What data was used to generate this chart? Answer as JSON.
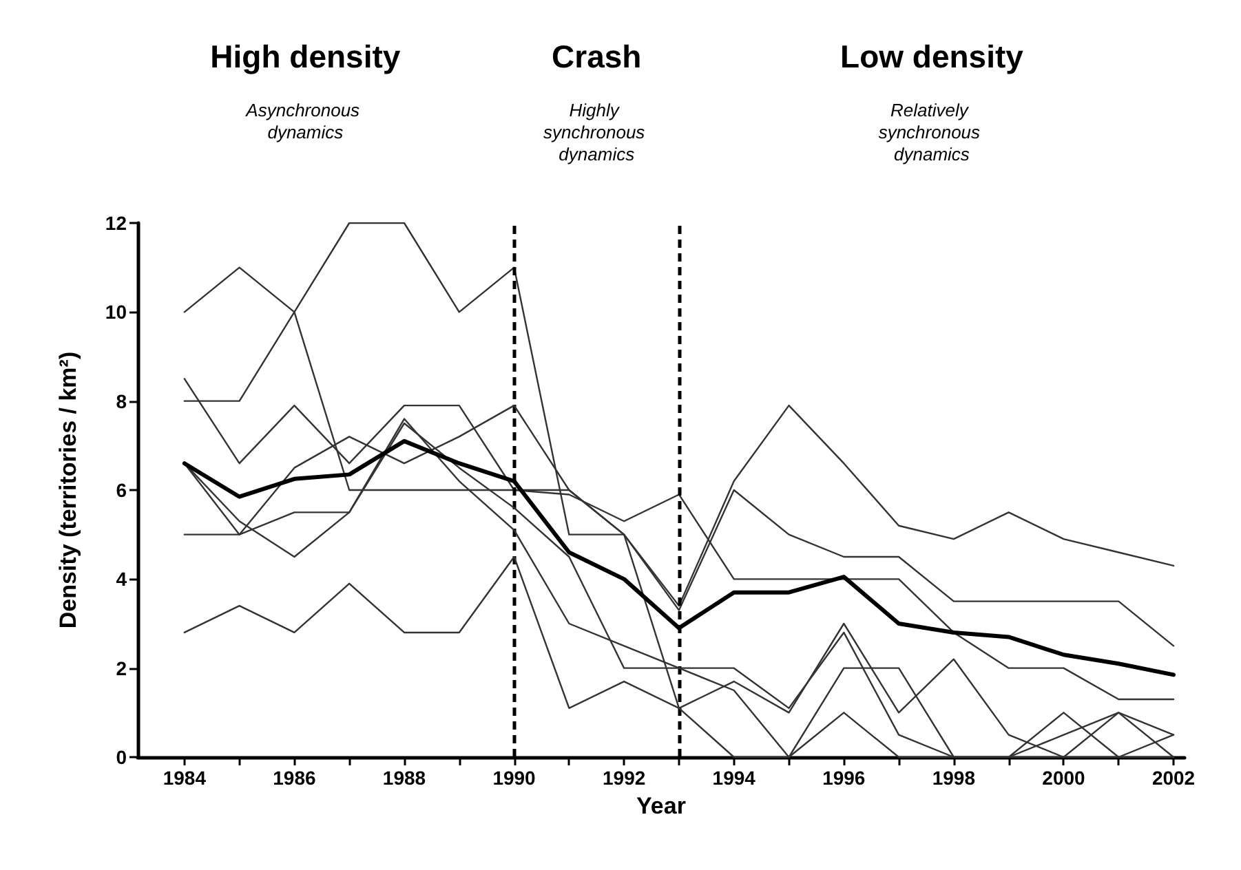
{
  "chart_data": {
    "type": "line",
    "xlabel": "Year",
    "ylabel": "Density (territories / km²)",
    "annotations": [
      "High density",
      "Asynchronous dynamics",
      "Crash",
      "Highly synchronous dynamics",
      "Low density",
      "Relatively synchronous dynamics"
    ],
    "x": [
      1984,
      1985,
      1986,
      1987,
      1988,
      1989,
      1990,
      1991,
      1992,
      1993,
      1994,
      1995,
      1996,
      1997,
      1998,
      1999,
      2000,
      2001,
      2002
    ],
    "series": [
      {
        "color": "#333333",
        "values": [
          10,
          11,
          10,
          6,
          6,
          6,
          6,
          6,
          5,
          3.3,
          6.0,
          5.0,
          4.5,
          4.5,
          3.5,
          3.5,
          3.5,
          3.5,
          2.5
        ]
      },
      {
        "color": "#333333",
        "values": [
          8,
          8,
          10,
          12,
          12,
          10,
          11,
          5,
          5,
          3.4,
          6.2,
          7.9,
          6.6,
          5.2,
          4.9,
          5.5,
          4.9,
          4.6,
          4.3
        ]
      },
      {
        "color": "#333333",
        "values": [
          8.5,
          6.6,
          7.9,
          6.6,
          7.9,
          7.9,
          6.0,
          5.9,
          5.3,
          5.9,
          4.0,
          4.0,
          4.0,
          4.0,
          2.8,
          2.0,
          2.0,
          1.3,
          1.3
        ]
      },
      {
        "color": "#333333",
        "values": [
          6.6,
          5.0,
          6.5,
          7.2,
          6.6,
          7.2,
          7.9,
          6.0,
          5.0,
          1.1,
          1.7,
          1.0,
          3.0,
          1.0,
          2.2,
          0.5,
          0,
          1.0,
          0.5
        ]
      },
      {
        "color": "#333333",
        "values": [
          6.6,
          5.3,
          4.5,
          5.5,
          7.6,
          6.2,
          5.1,
          3.0,
          2.5,
          2.0,
          2.0,
          1.1,
          2.8,
          0.5,
          0,
          0,
          0,
          0,
          0
        ]
      },
      {
        "color": "#333333",
        "values": [
          5,
          5,
          5.5,
          5.5,
          7.5,
          6.5,
          5.6,
          4.5,
          2.0,
          2.0,
          1.5,
          0,
          2.0,
          2.0,
          0,
          0,
          1.0,
          0,
          0.5
        ]
      },
      {
        "color": "#333333",
        "values": [
          2.8,
          3.4,
          2.8,
          3.9,
          2.8,
          2.8,
          4.5,
          1.1,
          1.7,
          1.1,
          0,
          0,
          1.0,
          0,
          0,
          0,
          0.5,
          1.0,
          0
        ]
      },
      {
        "color": "#000000",
        "values": [
          6.6,
          5.85,
          6.25,
          6.35,
          7.1,
          6.6,
          6.2,
          4.6,
          4.0,
          2.9,
          3.7,
          3.7,
          4.05,
          3.0,
          2.8,
          2.7,
          2.3,
          2.1,
          1.85
        ]
      }
    ],
    "ref_lines": [
      {
        "axis": "x",
        "value": 1990,
        "color": "#000000",
        "line_style": "dashed"
      },
      {
        "axis": "x",
        "value": 1993,
        "color": "#000000",
        "line_style": "dashed"
      }
    ],
    "xlim": [
      1983.15,
      2002.2
    ],
    "xticks": [
      {
        "value": 1984,
        "label": "1984"
      },
      {
        "value": 1985,
        "label": null
      },
      {
        "value": 1986,
        "label": "1986"
      },
      {
        "value": 1987,
        "label": null
      },
      {
        "value": 1988,
        "label": "1988"
      },
      {
        "value": 1989,
        "label": null
      },
      {
        "value": 1990,
        "label": "1990"
      },
      {
        "value": 1991,
        "label": null
      },
      {
        "value": 1992,
        "label": "1992"
      },
      {
        "value": 1993,
        "label": null
      },
      {
        "value": 1994,
        "label": "1994"
      },
      {
        "value": 1995,
        "label": null
      },
      {
        "value": 1996,
        "label": "1996"
      },
      {
        "value": 1997,
        "label": null
      },
      {
        "value": 1998,
        "label": "1998"
      },
      {
        "value": 1999,
        "label": null
      },
      {
        "value": 2000,
        "label": "2000"
      },
      {
        "value": 2001,
        "label": null
      },
      {
        "value": 2002,
        "label": "2002"
      }
    ],
    "ylim": [
      0,
      12
    ],
    "yticks": [
      0,
      2,
      4,
      6,
      8,
      10,
      12
    ],
    "grid": false,
    "marker": "none",
    "line_style": "solid"
  }
}
